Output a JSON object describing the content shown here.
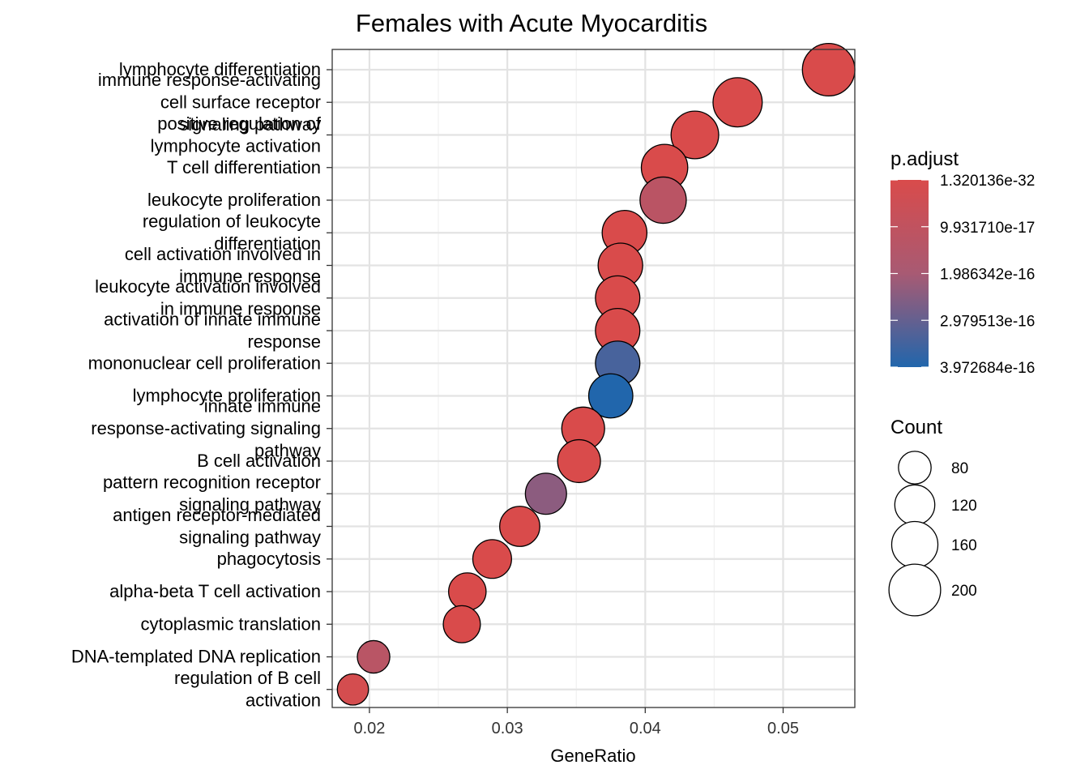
{
  "chart_data": {
    "type": "scatter",
    "title": "Females with Acute Myocarditis",
    "xlabel": "GeneRatio",
    "ylabel": "",
    "xlim": [
      0.0173,
      0.0552
    ],
    "xticks": [
      0.02,
      0.03,
      0.04,
      0.05
    ],
    "xtick_labels": [
      "0.02",
      "0.03",
      "0.04",
      "0.05"
    ],
    "grid": true,
    "legend_position": "right",
    "color_legend": {
      "title": "p.adjust",
      "labels": [
        "1.320136e-32",
        "9.931710e-17",
        "1.986342e-16",
        "2.979513e-16",
        "3.972684e-16"
      ],
      "values": [
        1.320136e-32,
        9.93171e-17,
        1.986342e-16,
        2.979513e-16,
        3.972684e-16
      ],
      "low_color": "#d94b4b",
      "mid_color": "#a85a73",
      "high_color": "#2166ac"
    },
    "size_legend": {
      "title": "Count",
      "labels": [
        "80",
        "120",
        "160",
        "200"
      ],
      "values": [
        80,
        120,
        160,
        200
      ]
    },
    "points": [
      {
        "label": "lymphocyte differentiation",
        "x": 0.0533,
        "count": 198,
        "p_adjust": 1e-31
      },
      {
        "label": "immune response-activating cell surface receptor signaling pathway",
        "x": 0.0467,
        "count": 174,
        "p_adjust": 2e-31
      },
      {
        "label": "positive regulation of lymphocyte activation",
        "x": 0.0436,
        "count": 163,
        "p_adjust": 5e-31
      },
      {
        "label": "T cell differentiation",
        "x": 0.0414,
        "count": 155,
        "p_adjust": 3e-30
      },
      {
        "label": "leukocyte proliferation",
        "x": 0.0413,
        "count": 154,
        "p_adjust": 1.25e-16
      },
      {
        "label": "regulation of leukocyte differentiation",
        "x": 0.0385,
        "count": 144,
        "p_adjust": 1e-28
      },
      {
        "label": "cell activation involved in immune response",
        "x": 0.0382,
        "count": 143,
        "p_adjust": 1e-27
      },
      {
        "label": "leukocyte activation involved in immune response",
        "x": 0.038,
        "count": 142,
        "p_adjust": 5e-28
      },
      {
        "label": "activation of innate immune response",
        "x": 0.038,
        "count": 142,
        "p_adjust": 3e-27
      },
      {
        "label": "mononuclear cell proliferation",
        "x": 0.038,
        "count": 142,
        "p_adjust": 3.4e-16
      },
      {
        "label": "lymphocyte proliferation",
        "x": 0.0375,
        "count": 140,
        "p_adjust": 3.97e-16
      },
      {
        "label": "innate immune response-activating signaling pathway",
        "x": 0.0355,
        "count": 132,
        "p_adjust": 2e-25
      },
      {
        "label": "B cell activation",
        "x": 0.0352,
        "count": 132,
        "p_adjust": 1e-24
      },
      {
        "label": "pattern recognition receptor signaling pathway",
        "x": 0.0328,
        "count": 122,
        "p_adjust": 2.4e-16
      },
      {
        "label": "antigen receptor-mediated signaling pathway",
        "x": 0.0309,
        "count": 116,
        "p_adjust": 1e-20
      },
      {
        "label": "phagocytosis",
        "x": 0.0289,
        "count": 108,
        "p_adjust": 5e-20
      },
      {
        "label": "alpha-beta T cell activation",
        "x": 0.0271,
        "count": 101,
        "p_adjust": 1e-18
      },
      {
        "label": "cytoplasmic translation",
        "x": 0.0267,
        "count": 99,
        "p_adjust": 2e-18
      },
      {
        "label": "DNA-templated DNA replication",
        "x": 0.0203,
        "count": 76,
        "p_adjust": 1.3e-16
      },
      {
        "label": "regulation of B cell activation",
        "x": 0.0188,
        "count": 70,
        "p_adjust": 2e-17
      }
    ]
  }
}
